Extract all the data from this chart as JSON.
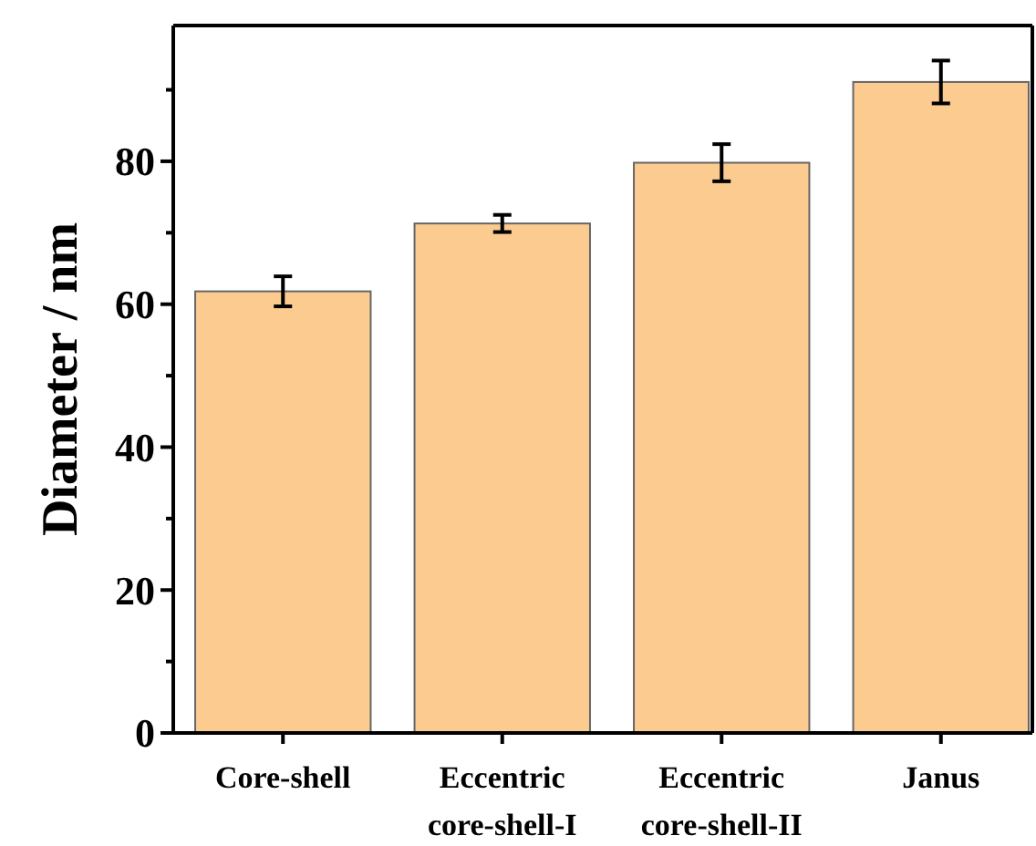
{
  "chart_data": {
    "type": "bar",
    "ylabel": "Diameter / nm",
    "categories": [
      "Core-shell",
      "Eccentric\ncore-shell-I",
      "Eccentric\ncore-shell-II",
      "Janus"
    ],
    "values": [
      61.8,
      71.3,
      79.8,
      91.1
    ],
    "errors": [
      2.1,
      1.2,
      2.6,
      3
    ],
    "color": "#fccb90",
    "ylim": [
      0,
      99
    ],
    "yticks": [
      0,
      {
        "value": 10,
        "label": null
      },
      20,
      {
        "value": 30,
        "label": null
      },
      40,
      {
        "value": 50,
        "label": null
      },
      60,
      {
        "value": 70,
        "label": null
      },
      80,
      {
        "value": 90,
        "label": null
      }
    ]
  }
}
